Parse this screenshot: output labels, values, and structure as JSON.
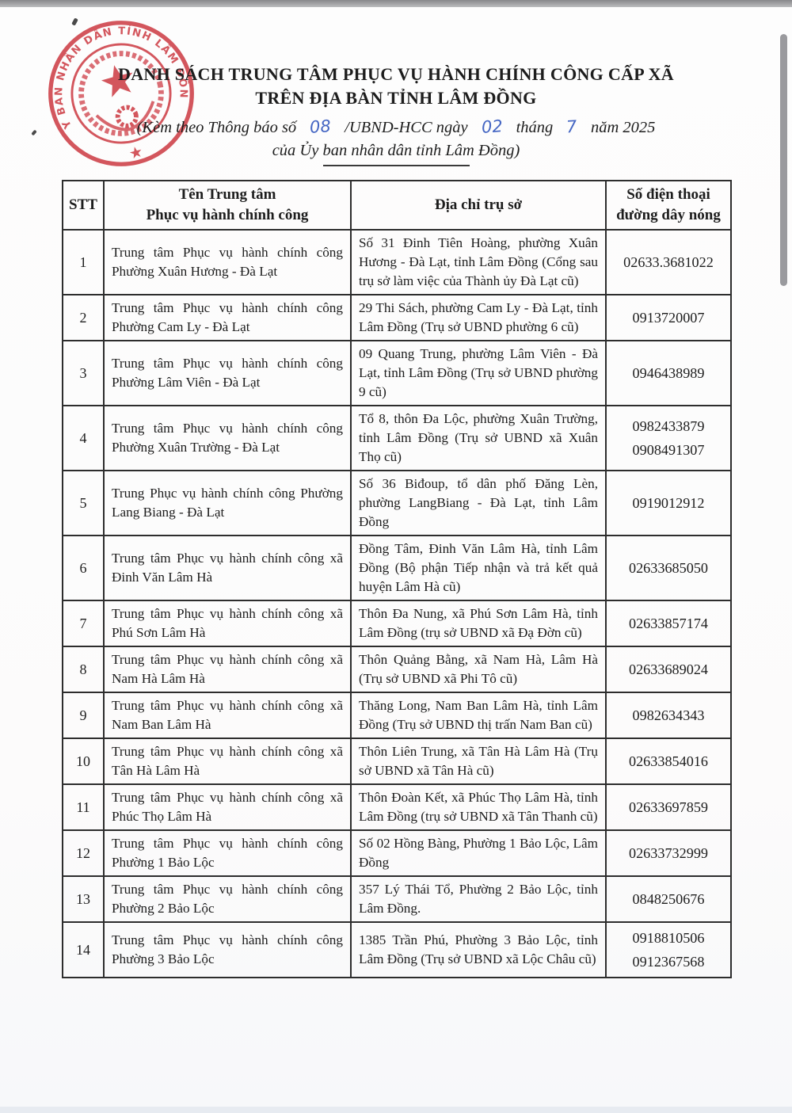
{
  "colors": {
    "seal_red": "#d24850",
    "handwriting_blue": "#4566c3",
    "text": "#1d1d1d",
    "chrome_gray": "#bcbdbf",
    "scrollbar_gray": "#9a9a9e"
  },
  "seal": {
    "ring_text": "ỦY BAN NHÂN DÂN TỈNH LÂM ĐỒNG",
    "bottom_star": "★"
  },
  "header": {
    "title_line1": "DANH SÁCH TRUNG TÂM PHỤC VỤ HÀNH CHÍNH CÔNG CẤP XÃ",
    "title_line2": "TRÊN ĐỊA BÀN TỈNH LÂM ĐỒNG",
    "subtitle_prefix": "(Kèm theo Thông báo số",
    "handwritten_number": "08",
    "subtitle_mid1": "/UBND-HCC ngày",
    "handwritten_day": "02",
    "subtitle_mid2": "tháng",
    "handwritten_month": "7",
    "subtitle_suffix": "năm 2025",
    "subtitle_line2": "của Ủy ban nhân dân tỉnh Lâm Đồng)"
  },
  "table": {
    "headers": {
      "stt": "STT",
      "name_line1": "Tên Trung tâm",
      "name_line2": "Phục vụ hành chính công",
      "address": "Địa chỉ trụ sở",
      "phone_line1": "Số điện thoại",
      "phone_line2": "đường dây nóng"
    },
    "rows": [
      {
        "stt": "1",
        "name": "Trung tâm Phục vụ hành chính công Phường Xuân Hương - Đà Lạt",
        "address": "Số 31 Đinh Tiên Hoàng, phường Xuân Hương - Đà Lạt, tỉnh Lâm Đồng (Cổng sau trụ sở làm việc của Thành ủy Đà Lạt cũ)",
        "phones": [
          "02633.3681022"
        ]
      },
      {
        "stt": "2",
        "name": "Trung tâm Phục vụ hành chính công Phường Cam Ly - Đà Lạt",
        "address": "29 Thi Sách, phường Cam Ly - Đà Lạt, tỉnh Lâm Đồng (Trụ sở UBND phường 6 cũ)",
        "phones": [
          "0913720007"
        ]
      },
      {
        "stt": "3",
        "name": "Trung tâm Phục vụ hành chính công Phường Lâm Viên - Đà Lạt",
        "address": "09 Quang Trung, phường Lâm Viên - Đà Lạt, tỉnh Lâm Đồng (Trụ sở UBND phường 9 cũ)",
        "phones": [
          "0946438989"
        ]
      },
      {
        "stt": "4",
        "name": "Trung tâm Phục vụ hành chính công Phường Xuân Trường - Đà Lạt",
        "address": "Tổ 8, thôn Đa Lộc, phường Xuân Trường, tỉnh Lâm Đồng (Trụ sở UBND xã Xuân Thọ cũ)",
        "phones": [
          "0982433879",
          "0908491307"
        ]
      },
      {
        "stt": "5",
        "name": "Trung Phục vụ hành chính công Phường Lang Biang - Đà Lạt",
        "address": "Số 36 Biđoup, tổ dân phố Đăng Lèn, phường LangBiang - Đà Lạt, tỉnh Lâm Đồng",
        "phones": [
          "0919012912"
        ]
      },
      {
        "stt": "6",
        "name": "Trung tâm Phục vụ hành chính công xã Đinh Văn Lâm Hà",
        "address": "Đồng Tâm, Đinh Văn Lâm Hà, tỉnh Lâm Đồng (Bộ phận Tiếp nhận và trả kết quả huyện Lâm Hà cũ)",
        "phones": [
          "02633685050"
        ]
      },
      {
        "stt": "7",
        "name": "Trung tâm Phục vụ hành chính công xã Phú Sơn Lâm Hà",
        "address": "Thôn Đa Nung, xã Phú Sơn Lâm Hà, tỉnh Lâm Đồng (trụ sở UBND xã Đạ Đờn cũ)",
        "phones": [
          "02633857174"
        ]
      },
      {
        "stt": "8",
        "name": "Trung tâm Phục vụ hành chính công xã Nam Hà Lâm Hà",
        "address": "Thôn Quảng Bằng, xã Nam Hà, Lâm Hà (Trụ sở UBND xã Phi Tô cũ)",
        "phones": [
          "02633689024"
        ]
      },
      {
        "stt": "9",
        "name": "Trung tâm Phục vụ hành chính công xã Nam Ban Lâm Hà",
        "address": "Thăng Long, Nam Ban Lâm Hà, tỉnh Lâm Đồng (Trụ sở UBND thị trấn Nam Ban cũ)",
        "phones": [
          "0982634343"
        ]
      },
      {
        "stt": "10",
        "name": "Trung tâm Phục vụ hành chính công xã Tân Hà Lâm Hà",
        "address": "Thôn Liên Trung, xã Tân Hà Lâm Hà (Trụ sở UBND xã Tân Hà cũ)",
        "phones": [
          "02633854016"
        ]
      },
      {
        "stt": "11",
        "name": "Trung tâm Phục vụ hành chính công xã Phúc Thọ Lâm Hà",
        "address": "Thôn Đoàn Kết, xã Phúc Thọ Lâm Hà, tỉnh Lâm Đồng (trụ sở UBND xã Tân Thanh cũ)",
        "phones": [
          "02633697859"
        ]
      },
      {
        "stt": "12",
        "name": "Trung tâm Phục vụ hành chính công Phường 1 Bảo Lộc",
        "address": "Số 02 Hồng Bàng, Phường 1 Bảo Lộc, Lâm Đồng",
        "phones": [
          "02633732999"
        ]
      },
      {
        "stt": "13",
        "name": "Trung tâm Phục vụ hành chính công Phường 2 Bảo Lộc",
        "address": "357 Lý Thái Tổ, Phường 2 Bảo Lộc, tỉnh Lâm Đồng.",
        "phones": [
          "0848250676"
        ]
      },
      {
        "stt": "14",
        "name": "Trung tâm Phục vụ hành chính công Phường 3 Bảo Lộc",
        "address": "1385 Trần Phú, Phường 3 Bảo Lộc, tỉnh Lâm Đồng (Trụ sở UBND xã Lộc Châu cũ)",
        "phones": [
          "0918810506",
          "0912367568"
        ]
      }
    ]
  }
}
